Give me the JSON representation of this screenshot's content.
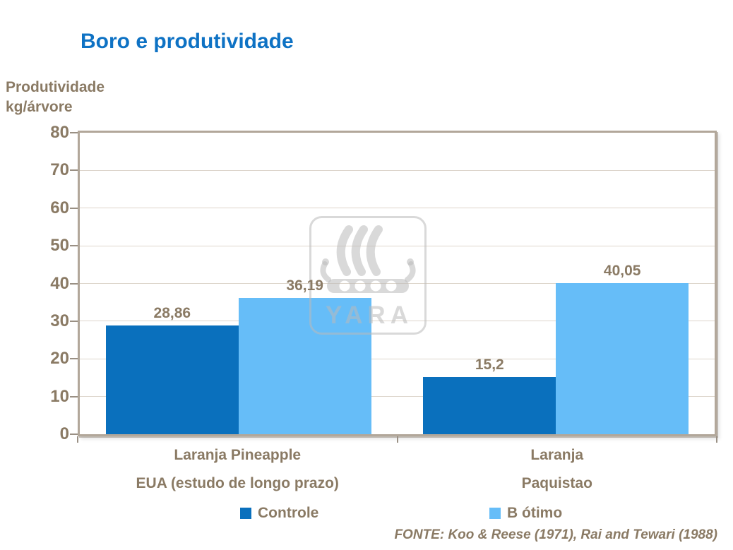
{
  "slide": {
    "title": "Boro e produtividade",
    "source": "FONTE: Koo & Reese (1971), Rai and Tewari (1988)",
    "watermark_text": "YARA"
  },
  "y_axis_label": {
    "line1": "Produtividade",
    "line2": "kg/árvore"
  },
  "chart_data": {
    "type": "bar",
    "title": "Boro e produtividade",
    "ylabel": "Produtividade kg/árvore",
    "xlabel": "",
    "ylim": [
      0,
      80
    ],
    "ytick_step": 10,
    "yticks": [
      0,
      10,
      20,
      30,
      40,
      50,
      60,
      70,
      80
    ],
    "grid": true,
    "legend_position": "bottom",
    "categories": [
      {
        "line1": "Laranja Pineapple",
        "line2": "EUA (estudo de longo prazo)"
      },
      {
        "line1": "Laranja",
        "line2": "Paquistao"
      }
    ],
    "series": [
      {
        "name": "Controle",
        "color": "#0a70bd",
        "values": [
          28.86,
          15.2
        ],
        "value_labels": [
          "28,86",
          "15,2"
        ]
      },
      {
        "name": "B ótimo",
        "color": "#66bdf8",
        "values": [
          36.19,
          40.05
        ],
        "value_labels": [
          "36,19",
          "40,05"
        ]
      }
    ]
  },
  "colors": {
    "title_blue": "#0e72c4",
    "bar_dark_blue": "#0a70bd",
    "bar_light_blue": "#66bdf8",
    "text_brown": "#8a7a64",
    "frame": "#b2a79a",
    "gridline": "#ddd5cb",
    "watermark_gray": "#bababa"
  }
}
